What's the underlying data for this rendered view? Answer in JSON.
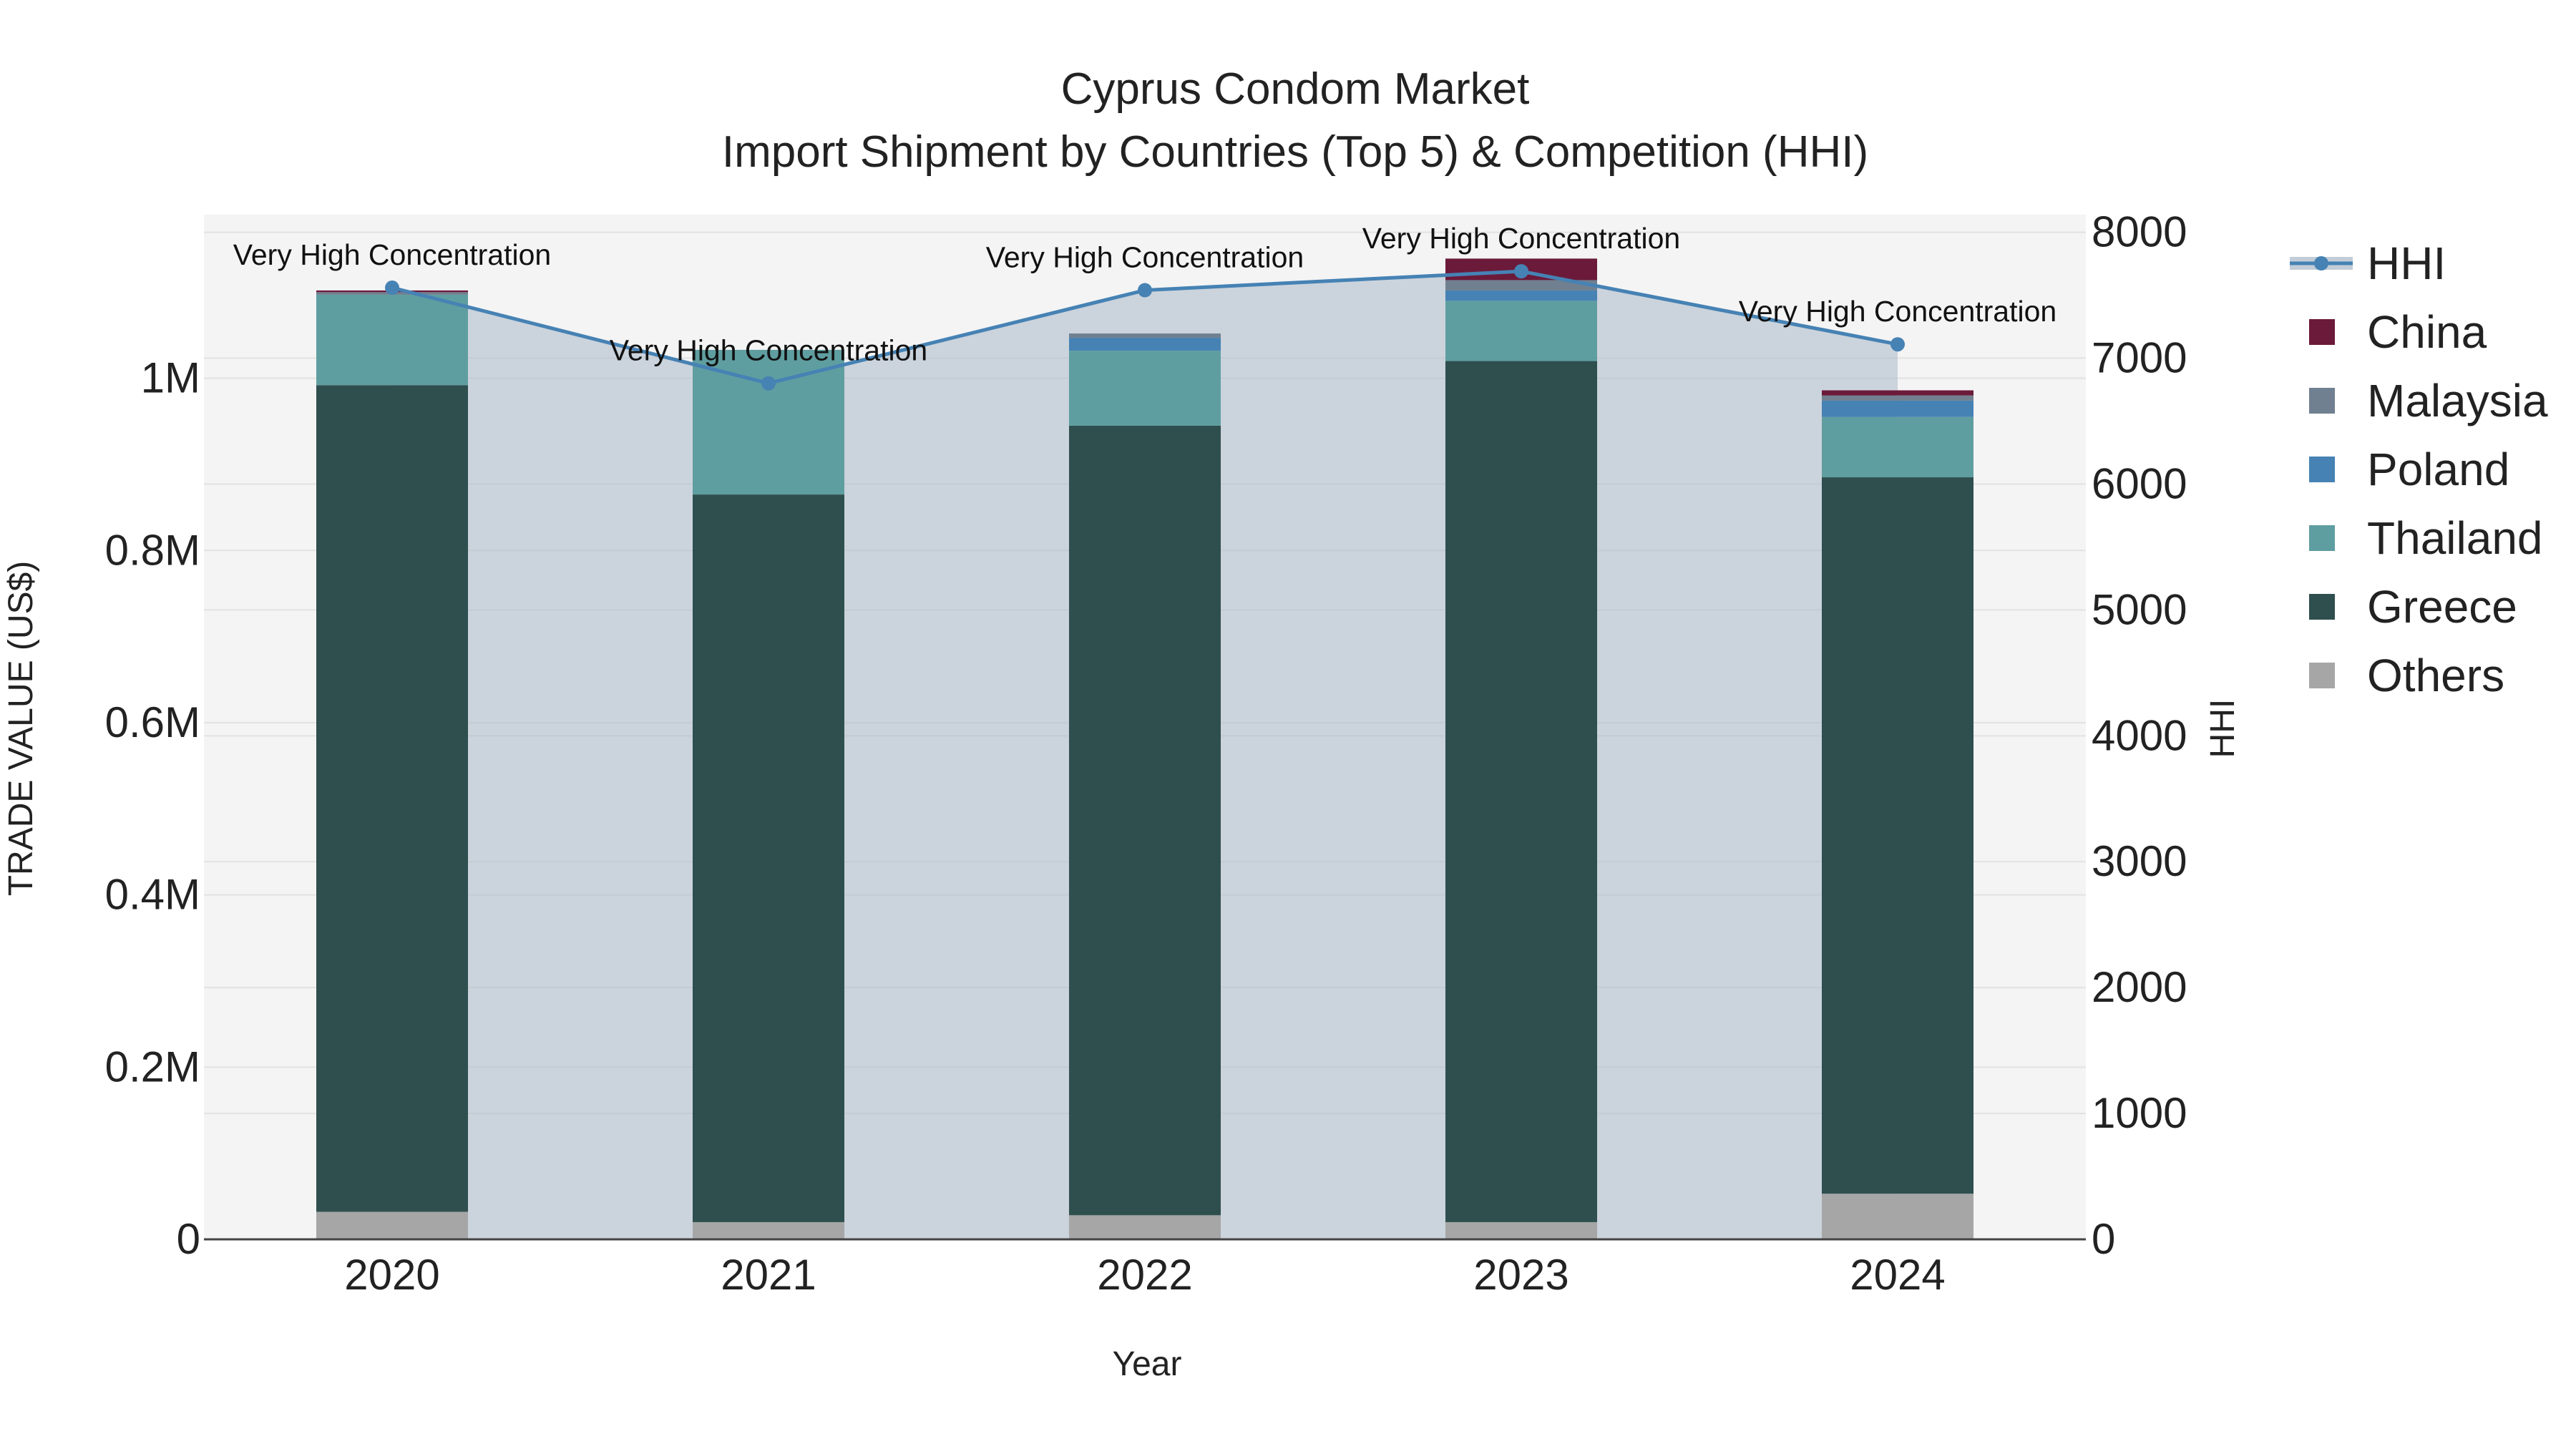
{
  "chart_data": {
    "type": "bar",
    "title": "Cyprus Condom Market",
    "subtitle": "Import Shipment by Countries (Top 5) & Competition (HHI)",
    "xlabel": "Year",
    "ylabel": "TRADE VALUE (US$)",
    "y2label": "HHI",
    "categories": [
      "2020",
      "2021",
      "2022",
      "2023",
      "2024"
    ],
    "ylim": [
      0,
      1190000
    ],
    "y2lim": [
      0,
      8140
    ],
    "yticks": [
      {
        "value": 0,
        "label": "0"
      },
      {
        "value": 200000,
        "label": "0.2M"
      },
      {
        "value": 400000,
        "label": "0.4M"
      },
      {
        "value": 600000,
        "label": "0.6M"
      },
      {
        "value": 800000,
        "label": "0.8M"
      },
      {
        "value": 1000000,
        "label": "1M"
      }
    ],
    "y2ticks": [
      {
        "value": 0,
        "label": "0"
      },
      {
        "value": 1000,
        "label": "1000"
      },
      {
        "value": 2000,
        "label": "2000"
      },
      {
        "value": 3000,
        "label": "3000"
      },
      {
        "value": 4000,
        "label": "4000"
      },
      {
        "value": 5000,
        "label": "5000"
      },
      {
        "value": 6000,
        "label": "6000"
      },
      {
        "value": 7000,
        "label": "7000"
      },
      {
        "value": 8000,
        "label": "8000"
      }
    ],
    "series": [
      {
        "name": "Others",
        "color": "#a6a6a6",
        "values": [
          32000,
          20000,
          28000,
          20000,
          53000
        ]
      },
      {
        "name": "Greece",
        "color": "#2f4f4f",
        "values": [
          960000,
          845000,
          917000,
          1000000,
          832000
        ]
      },
      {
        "name": "Thailand",
        "color": "#5f9ea0",
        "values": [
          105000,
          168000,
          87000,
          70000,
          70000
        ]
      },
      {
        "name": "Poland",
        "color": "#4682b4",
        "values": [
          0,
          0,
          15000,
          12000,
          19000
        ]
      },
      {
        "name": "Malaysia",
        "color": "#708090",
        "values": [
          3000,
          0,
          5000,
          12000,
          6000
        ]
      },
      {
        "name": "China",
        "color": "#6b1a3a",
        "values": [
          2000,
          0,
          0,
          25000,
          6000
        ]
      }
    ],
    "legend_order": [
      "HHI",
      "China",
      "Malaysia",
      "Poland",
      "Thailand",
      "Greece",
      "Others"
    ],
    "hhi": {
      "name": "HHI",
      "color": "#4682b4",
      "values": [
        7560,
        6800,
        7540,
        7690,
        7110
      ],
      "annotations": [
        "Very High Concentration",
        "Very High Concentration",
        "Very High Concentration",
        "Very High Concentration",
        "Very High Concentration"
      ]
    },
    "legend_position": "right",
    "grid": true
  }
}
